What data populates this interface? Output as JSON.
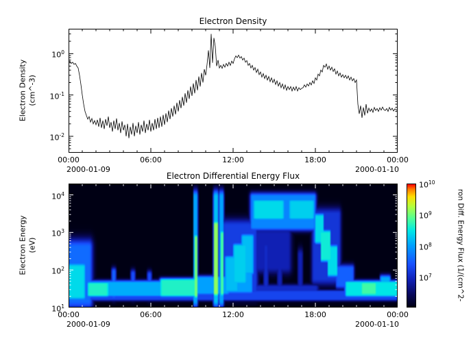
{
  "top_chart": {
    "title": "Electron Density",
    "ylabel_line1": "Electron Density",
    "ylabel_line2": "(cm^-3)"
  },
  "bottom_chart": {
    "title": "Electron Differential Energy Flux",
    "ylabel_line1": "Electron Energy",
    "ylabel_line2": "(eV)"
  },
  "x_axis": {
    "tick_labels": [
      "00:00",
      "06:00",
      "12:00",
      "18:00",
      "00:00"
    ],
    "date_left": "2000-01-09",
    "date_right": "2000-01-10"
  },
  "colorbar": {
    "tick_labels": [
      "10^10",
      "10^9",
      "10^8",
      "10^7"
    ],
    "label": "ron Diff. Energy Flux (1/(cm^2-",
    "stops": [
      [
        0,
        "#000014"
      ],
      [
        0.1,
        "#08085a"
      ],
      [
        0.22,
        "#1020b4"
      ],
      [
        0.35,
        "#1850ff"
      ],
      [
        0.5,
        "#00a0ff"
      ],
      [
        0.62,
        "#00e6e6"
      ],
      [
        0.72,
        "#50ff96"
      ],
      [
        0.82,
        "#b4ff3c"
      ],
      [
        0.9,
        "#ffdc00"
      ],
      [
        0.96,
        "#ff7800"
      ],
      [
        1,
        "#ff0000"
      ]
    ]
  },
  "chart_data": [
    {
      "type": "line",
      "title": "Electron Density",
      "ylabel": "Electron Density (cm^-3)",
      "x_start_hours": 0,
      "dt_hours": 0.1,
      "x_range_hours": [
        0,
        24
      ],
      "ylim": [
        0.004,
        4
      ],
      "yticks": [
        "10^0",
        "10^-1",
        "10^-2"
      ],
      "xticks": [
        "00:00",
        "06:00",
        "12:00",
        "18:00",
        "00:00"
      ],
      "values": [
        0.6,
        0.66,
        0.58,
        0.62,
        0.55,
        0.58,
        0.5,
        0.45,
        0.3,
        0.18,
        0.1,
        0.06,
        0.04,
        0.032,
        0.026,
        0.03,
        0.022,
        0.027,
        0.02,
        0.024,
        0.019,
        0.025,
        0.017,
        0.028,
        0.016,
        0.024,
        0.015,
        0.026,
        0.018,
        0.03,
        0.016,
        0.022,
        0.013,
        0.024,
        0.015,
        0.027,
        0.014,
        0.021,
        0.012,
        0.023,
        0.014,
        0.019,
        0.01,
        0.02,
        0.009,
        0.017,
        0.011,
        0.021,
        0.01,
        0.018,
        0.012,
        0.022,
        0.011,
        0.019,
        0.013,
        0.024,
        0.012,
        0.02,
        0.014,
        0.025,
        0.013,
        0.021,
        0.014,
        0.026,
        0.015,
        0.028,
        0.016,
        0.03,
        0.017,
        0.033,
        0.019,
        0.036,
        0.022,
        0.042,
        0.026,
        0.048,
        0.03,
        0.055,
        0.034,
        0.065,
        0.04,
        0.075,
        0.048,
        0.09,
        0.055,
        0.11,
        0.065,
        0.13,
        0.08,
        0.16,
        0.095,
        0.19,
        0.11,
        0.23,
        0.13,
        0.28,
        0.16,
        0.34,
        0.2,
        0.42,
        0.3,
        0.55,
        1.2,
        0.45,
        3.0,
        0.6,
        2.4,
        1.5,
        0.5,
        0.7,
        0.45,
        0.52,
        0.44,
        0.55,
        0.47,
        0.58,
        0.5,
        0.62,
        0.52,
        0.66,
        0.58,
        0.75,
        0.88,
        0.8,
        0.92,
        0.78,
        0.85,
        0.7,
        0.78,
        0.62,
        0.68,
        0.52,
        0.58,
        0.45,
        0.52,
        0.4,
        0.46,
        0.35,
        0.42,
        0.31,
        0.36,
        0.27,
        0.33,
        0.25,
        0.3,
        0.23,
        0.28,
        0.21,
        0.26,
        0.2,
        0.24,
        0.18,
        0.22,
        0.165,
        0.2,
        0.15,
        0.185,
        0.14,
        0.175,
        0.13,
        0.16,
        0.135,
        0.16,
        0.125,
        0.155,
        0.13,
        0.16,
        0.125,
        0.15,
        0.135,
        0.145,
        0.15,
        0.175,
        0.155,
        0.185,
        0.165,
        0.2,
        0.175,
        0.22,
        0.19,
        0.26,
        0.23,
        0.32,
        0.29,
        0.4,
        0.36,
        0.52,
        0.47,
        0.56,
        0.42,
        0.5,
        0.4,
        0.47,
        0.37,
        0.43,
        0.32,
        0.38,
        0.29,
        0.34,
        0.27,
        0.31,
        0.26,
        0.3,
        0.25,
        0.29,
        0.23,
        0.27,
        0.22,
        0.25,
        0.2,
        0.23,
        0.06,
        0.035,
        0.055,
        0.028,
        0.05,
        0.032,
        0.06,
        0.036,
        0.048,
        0.04,
        0.046,
        0.038,
        0.05,
        0.042,
        0.047,
        0.04,
        0.049,
        0.043,
        0.051,
        0.044,
        0.042,
        0.047,
        0.04,
        0.05,
        0.043,
        0.048,
        0.041,
        0.046,
        0.043,
        0.045
      ]
    },
    {
      "type": "heatmap",
      "title": "Electron Differential Energy Flux",
      "ylabel": "Electron Energy (eV)",
      "ylim_eV": [
        10,
        20000
      ],
      "yticks": [
        "10^4",
        "10^3",
        "10^2",
        "10^1"
      ],
      "x_range_hours": [
        0,
        24
      ],
      "colorbar_range": [
        "10^6",
        "10^10"
      ],
      "feature_format": [
        "t_start_h",
        "t_end_h",
        "energy_low_eV",
        "energy_high_eV",
        "intensity_0_1",
        "soft_t_h",
        "soft_logE_decades"
      ],
      "features": [
        [
          0.0,
          1.5,
          15,
          400,
          0.4,
          0.3,
          0.25
        ],
        [
          0.05,
          1.1,
          20,
          120,
          0.6,
          0.2,
          0.15
        ],
        [
          1.5,
          9.3,
          22,
          45,
          0.52,
          0.2,
          0.08
        ],
        [
          1.5,
          2.8,
          22,
          42,
          0.66,
          0.2,
          0.08
        ],
        [
          6.8,
          9.3,
          22,
          52,
          0.66,
          0.2,
          0.08
        ],
        [
          3.2,
          3.4,
          20,
          90,
          0.38,
          0.08,
          0.12
        ],
        [
          4.6,
          4.8,
          20,
          80,
          0.34,
          0.08,
          0.12
        ],
        [
          5.8,
          6.0,
          20,
          75,
          0.34,
          0.08,
          0.12
        ],
        [
          9.15,
          9.4,
          15,
          9000,
          0.5,
          0.05,
          0.2
        ],
        [
          9.18,
          9.36,
          22,
          700,
          0.75,
          0.04,
          0.15
        ],
        [
          10.6,
          10.9,
          15,
          9000,
          0.55,
          0.06,
          0.2
        ],
        [
          10.65,
          10.85,
          25,
          1600,
          0.78,
          0.05,
          0.15
        ],
        [
          11.05,
          11.3,
          15,
          9000,
          0.5,
          0.05,
          0.2
        ],
        [
          11.1,
          11.25,
          25,
          900,
          0.7,
          0.04,
          0.15
        ],
        [
          9.4,
          11.6,
          25,
          60,
          0.5,
          0.15,
          0.08
        ],
        [
          11.4,
          13.6,
          25,
          1500,
          0.3,
          0.25,
          0.2
        ],
        [
          11.6,
          13.3,
          28,
          80,
          0.5,
          0.2,
          0.1
        ],
        [
          11.5,
          12.3,
          30,
          200,
          0.55,
          0.15,
          0.12
        ],
        [
          12.1,
          12.9,
          50,
          420,
          0.58,
          0.15,
          0.12
        ],
        [
          12.7,
          13.4,
          90,
          750,
          0.55,
          0.15,
          0.12
        ],
        [
          13.4,
          17.9,
          1400,
          9000,
          0.45,
          0.2,
          0.12
        ],
        [
          13.6,
          15.6,
          2500,
          6500,
          0.6,
          0.2,
          0.1
        ],
        [
          16.2,
          17.8,
          2500,
          6500,
          0.58,
          0.2,
          0.1
        ],
        [
          13.6,
          16.0,
          120,
          900,
          0.22,
          0.3,
          0.2
        ],
        [
          13.5,
          18.0,
          20,
          35,
          0.25,
          0.3,
          0.08
        ],
        [
          14.3,
          14.5,
          40,
          400,
          0.25,
          0.1,
          0.2
        ],
        [
          15.3,
          15.5,
          40,
          300,
          0.22,
          0.1,
          0.2
        ],
        [
          16.8,
          17.0,
          40,
          250,
          0.22,
          0.1,
          0.2
        ],
        [
          17.9,
          19.7,
          60,
          3000,
          0.28,
          0.2,
          0.2
        ],
        [
          18.0,
          18.55,
          600,
          2600,
          0.6,
          0.08,
          0.12
        ],
        [
          18.45,
          19.05,
          200,
          950,
          0.64,
          0.08,
          0.12
        ],
        [
          18.95,
          19.55,
          80,
          380,
          0.6,
          0.08,
          0.12
        ],
        [
          19.6,
          20.7,
          40,
          110,
          0.38,
          0.15,
          0.12
        ],
        [
          20.3,
          24.0,
          22,
          45,
          0.62,
          0.2,
          0.08
        ],
        [
          21.4,
          22.4,
          24,
          42,
          0.7,
          0.15,
          0.08
        ],
        [
          22.8,
          23.4,
          25,
          60,
          0.52,
          0.1,
          0.1
        ],
        [
          0.8,
          24.0,
          17,
          26,
          0.32,
          0.3,
          0.06
        ]
      ]
    }
  ]
}
